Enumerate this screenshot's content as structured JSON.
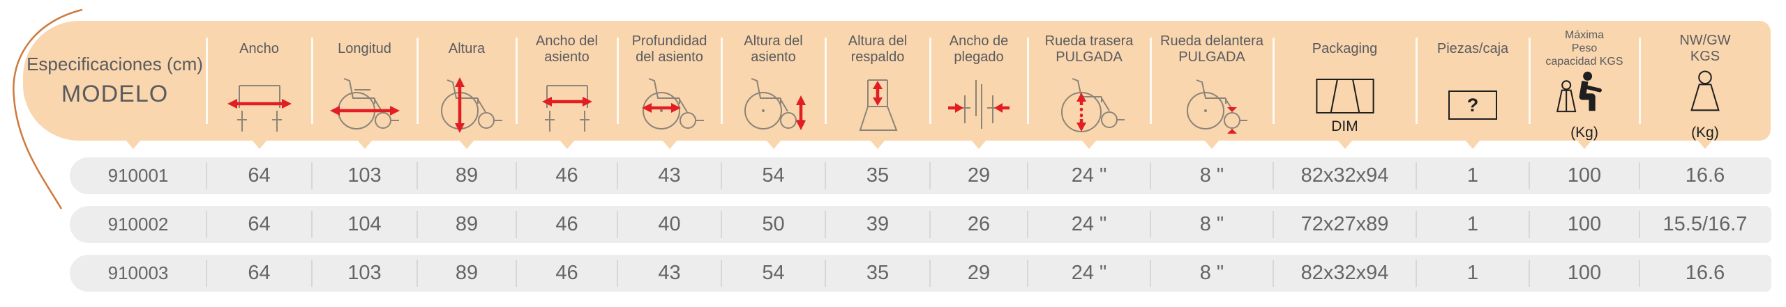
{
  "table": {
    "model_header": {
      "line1": "Especificaciones (cm)",
      "line2": "MODELO"
    },
    "columns": [
      {
        "id": "ancho",
        "label": "Ancho",
        "icon": "width-front"
      },
      {
        "id": "longitud",
        "label": "Longitud",
        "icon": "length-side"
      },
      {
        "id": "altura",
        "label": "Altura",
        "icon": "height-side"
      },
      {
        "id": "ancho-asiento",
        "label": "Ancho del\nasiento",
        "icon": "seat-width"
      },
      {
        "id": "profundidad-asiento",
        "label": "Profundidad\ndel asiento",
        "icon": "seat-depth"
      },
      {
        "id": "altura-asiento",
        "label": "Altura del\nasiento",
        "icon": "seat-height"
      },
      {
        "id": "altura-respaldo",
        "label": "Altura del\nrespaldo",
        "icon": "backrest-height"
      },
      {
        "id": "ancho-plegado",
        "label": "Ancho de\nplegado",
        "icon": "folded-width"
      },
      {
        "id": "rueda-trasera",
        "label": "Rueda trasera\nPULGADA",
        "icon": "rear-wheel"
      },
      {
        "id": "rueda-delantera",
        "label": "Rueda delantera\nPULGADA",
        "icon": "front-wheel"
      },
      {
        "id": "packaging",
        "label": "Packaging",
        "icon": "packaging-box",
        "caption": "DIM"
      },
      {
        "id": "piezas-caja",
        "label": "Piezas/caja",
        "icon": "pieces-box",
        "glyph": "?"
      },
      {
        "id": "maxima-peso",
        "label": "Máxima\nPeso\ncapacidad KGS",
        "icon": "max-weight",
        "caption": "(Kg)",
        "small_label": true
      },
      {
        "id": "nw-gw",
        "label": "NW/GW\nKGS",
        "icon": "nw-gw-weight",
        "caption": "(Kg)"
      }
    ],
    "rows": [
      {
        "model": "910001",
        "values": [
          "64",
          "103",
          "89",
          "46",
          "43",
          "54",
          "35",
          "29",
          "24 \"",
          "8 \"",
          "82x32x94",
          "1",
          "100",
          "16.6"
        ]
      },
      {
        "model": "910002",
        "values": [
          "64",
          "104",
          "89",
          "46",
          "40",
          "50",
          "39",
          "26",
          "24 \"",
          "8 \"",
          "72x27x89",
          "1",
          "100",
          "15.5/16.7"
        ]
      },
      {
        "model": "910003",
        "values": [
          "64",
          "103",
          "89",
          "46",
          "43",
          "54",
          "35",
          "29",
          "24 \"",
          "8 \"",
          "82x32x94",
          "1",
          "100",
          "16.6"
        ]
      }
    ]
  },
  "colors": {
    "header_bg": "#F9D6AE",
    "row_bg": "#EDEDED",
    "arrow_red": "#E21D23",
    "curve_orange": "#CE7A3D",
    "header_text": "#5A5B5E",
    "value_text": "#646569",
    "icon_line": "#8C8478",
    "icon_dark": "#1F1F1F"
  }
}
